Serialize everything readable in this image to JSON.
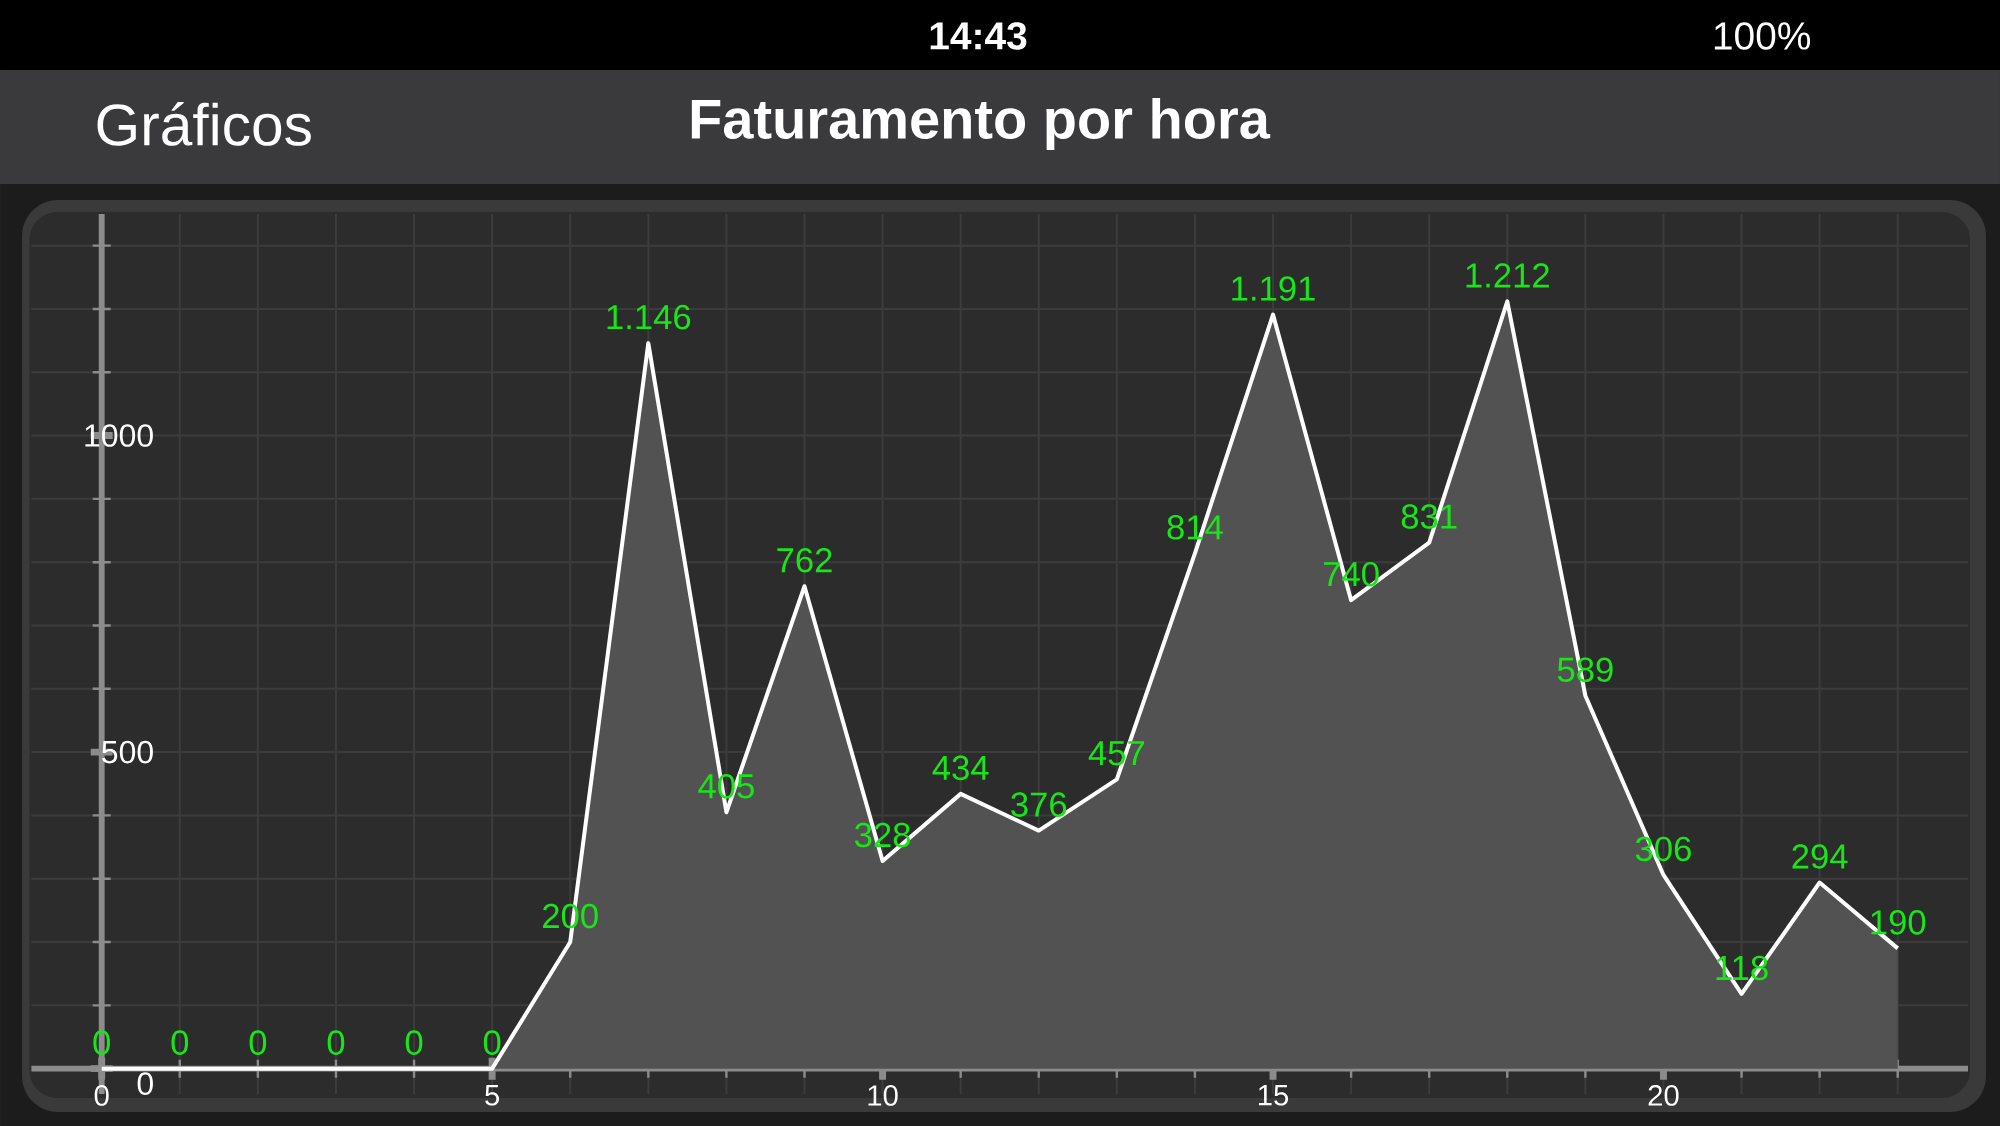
{
  "chart_data": {
    "type": "area",
    "title": "Faturamento por hora",
    "annotations": [
      "Gráficos",
      "14:43",
      "100%"
    ],
    "x": [
      0,
      1,
      2,
      3,
      4,
      5,
      6,
      7,
      8,
      9,
      10,
      11,
      12,
      13,
      14,
      15,
      16,
      17,
      18,
      19,
      20,
      21,
      22,
      23
    ],
    "values": [
      0,
      0,
      0,
      0,
      0,
      0,
      200,
      1146,
      405,
      762,
      328,
      434,
      376,
      457,
      814,
      1191,
      740,
      831,
      1212,
      589,
      306,
      118,
      294,
      190
    ],
    "color": "#ffffff",
    "value_labels": [
      "0",
      "0",
      "0",
      "0",
      "0",
      "0",
      "200",
      "1.146",
      "405",
      "762",
      "328",
      "434",
      "376",
      "457",
      "814",
      "1.191",
      "740",
      "831",
      "1.212",
      "589",
      "306",
      "118",
      "294",
      "190"
    ],
    "xlim": [
      -0.9,
      23.9
    ],
    "ylim": [
      -40,
      1350
    ],
    "xticks": [
      0,
      5,
      10,
      15,
      20
    ],
    "yticks": [
      0,
      500,
      1000
    ],
    "grid": true,
    "line_style": "solid"
  }
}
